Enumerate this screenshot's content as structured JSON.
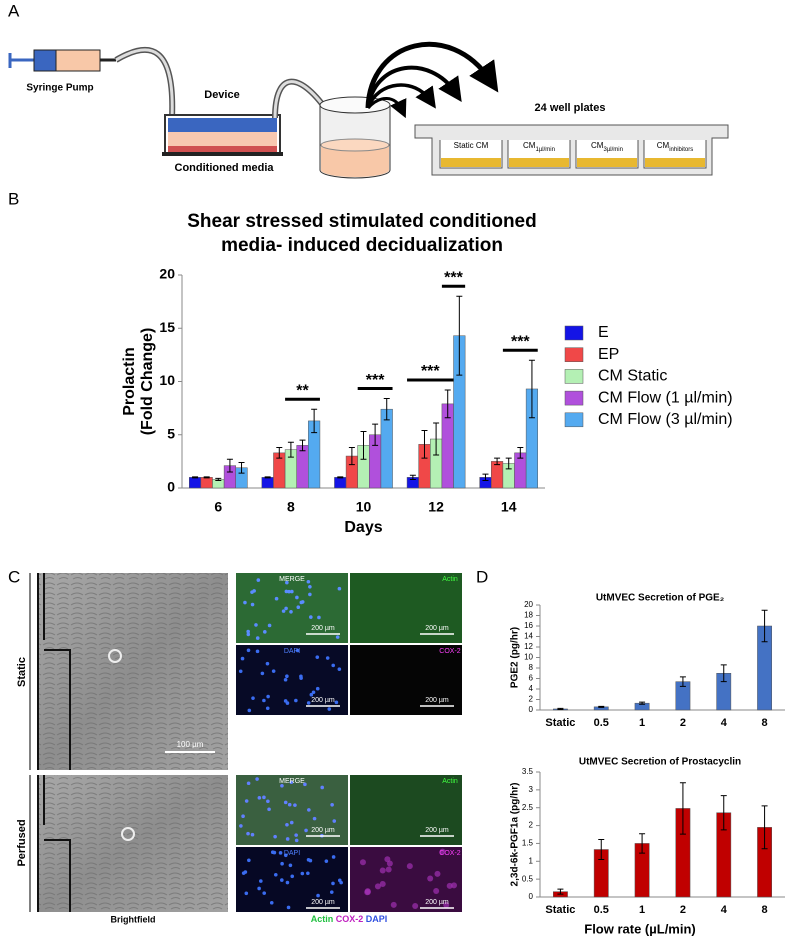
{
  "panel_labels": [
    "A",
    "B",
    "C",
    "D"
  ],
  "diagram": {
    "syringe_pump": "Syringe Pump",
    "device": "Device",
    "conditioned_media": "Conditioned media",
    "plates_title": "24 well plates",
    "wells": [
      {
        "main": "Static CM"
      },
      {
        "main": "CM",
        "sub": "1µl/min"
      },
      {
        "main": "CM",
        "sub": "3µl/min"
      },
      {
        "main": "CM",
        "sub": "inhibitors"
      }
    ]
  },
  "chart_data": [
    {
      "type": "bar",
      "title": [
        "Shear stressed stimulated conditioned",
        "media- induced decidualization"
      ],
      "y_label": [
        "Prolactin",
        "(Fold Change)"
      ],
      "x_label": "Days",
      "categories": [
        "6",
        "8",
        "10",
        "12",
        "14"
      ],
      "series": [
        {
          "name": "E",
          "color": "#1414e6",
          "values": [
            1.0,
            1.0,
            1.0,
            1.0,
            1.0
          ],
          "errors": [
            0.05,
            0.05,
            0.05,
            0.2,
            0.3
          ]
        },
        {
          "name": "EP",
          "color": "#f04848",
          "values": [
            1.0,
            3.3,
            3.0,
            4.1,
            2.5
          ],
          "errors": [
            0.05,
            0.5,
            0.8,
            1.3,
            0.3
          ]
        },
        {
          "name": "CM Static",
          "color": "#b4f0b4",
          "values": [
            0.8,
            3.6,
            4.0,
            4.6,
            2.3
          ],
          "errors": [
            0.1,
            0.7,
            1.3,
            1.5,
            0.5
          ]
        },
        {
          "name": "CM Flow (1 µl/min)",
          "color": "#b050dc",
          "values": [
            2.1,
            4.0,
            5.0,
            7.9,
            3.3
          ],
          "errors": [
            0.6,
            0.5,
            1.0,
            1.3,
            0.5
          ]
        },
        {
          "name": "CM Flow (3 µl/min)",
          "color": "#54aaf0",
          "values": [
            1.9,
            6.3,
            7.4,
            14.3,
            9.3
          ],
          "errors": [
            0.5,
            1.1,
            1.0,
            3.7,
            2.7
          ]
        }
      ],
      "annotations": [
        {
          "text": "**",
          "category": "8"
        },
        {
          "text": "***",
          "category": "10"
        },
        {
          "text": "***",
          "category": "12"
        },
        {
          "text": "***",
          "category": "12"
        },
        {
          "text": "***",
          "category": "14"
        }
      ],
      "ylim": [
        0,
        20
      ],
      "yticks": [
        0,
        5,
        10,
        15,
        20
      ],
      "legend": "right"
    },
    {
      "type": "bar",
      "title": "UtMVEC Secretion of PGE₂",
      "y_label": "PGE2 (pg/hr)",
      "categories": [
        "Static",
        "0.5",
        "1",
        "2",
        "4",
        "8"
      ],
      "series": [
        {
          "color": "#4472c4",
          "values": [
            0.2,
            0.6,
            1.3,
            5.4,
            7.0,
            16.0
          ],
          "errors": [
            0.1,
            0.1,
            0.2,
            0.9,
            1.6,
            3.0
          ]
        }
      ],
      "ylim": [
        0,
        20
      ],
      "yticks": [
        0,
        2,
        4,
        6,
        8,
        10,
        12,
        14,
        16,
        18,
        20
      ]
    },
    {
      "type": "bar",
      "title": "UtMVEC Secretion of Prostacyclin",
      "y_label": "2,3d-6k-PGF1a (pg/hr)",
      "x_label": "Flow rate (µL/min)",
      "categories": [
        "Static",
        "0.5",
        "1",
        "2",
        "4",
        "8"
      ],
      "series": [
        {
          "color": "#c00000",
          "values": [
            0.15,
            1.33,
            1.5,
            2.48,
            2.36,
            1.95
          ],
          "errors": [
            0.07,
            0.28,
            0.27,
            0.72,
            0.48,
            0.6
          ]
        }
      ],
      "ylim": [
        0,
        3.5
      ],
      "yticks": [
        0,
        0.5,
        1,
        1.5,
        2,
        2.5,
        3,
        3.5
      ]
    }
  ],
  "micrographs": {
    "rows": [
      "Static",
      "Perfused"
    ],
    "brightfield_label": "Brightfield",
    "brightfield_scale": "100 µm",
    "channels": [
      "MERGE",
      "Actin",
      "DAPI",
      "COX-2"
    ],
    "channel_scale": "200 µm",
    "caption": [
      "Actin",
      "COX-2",
      "DAPI"
    ]
  }
}
